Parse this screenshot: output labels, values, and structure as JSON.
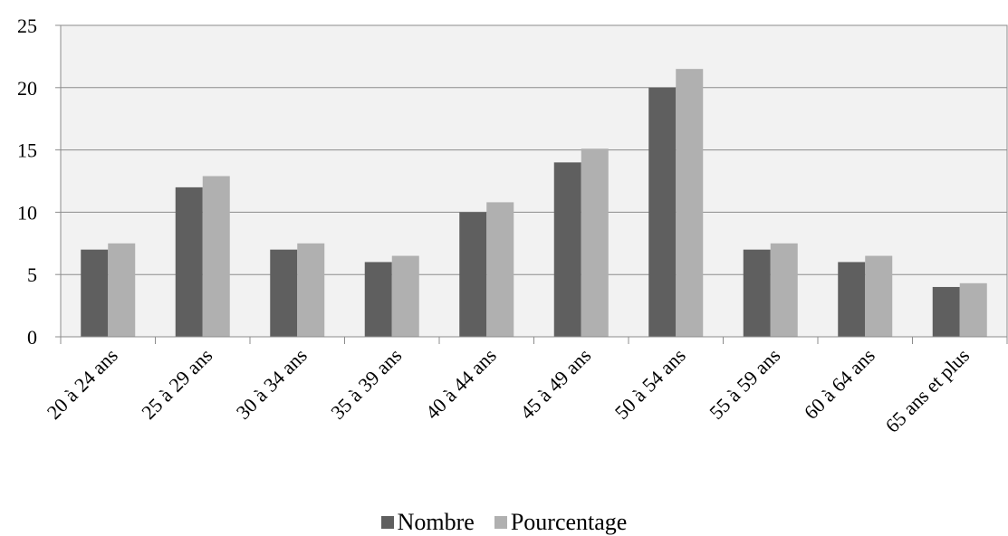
{
  "chart_data": {
    "type": "bar",
    "categories": [
      "20 à 24 ans",
      "25 à 29 ans",
      "30 à 34 ans",
      "35 à 39 ans",
      "40 à 44 ans",
      "45 à 49 ans",
      "50 à 54 ans",
      "55 à 59 ans",
      "60 à 64 ans",
      "65 ans et plus"
    ],
    "series": [
      {
        "name": "Nombre",
        "color": "#5f5f5f",
        "values": [
          7,
          12,
          7,
          6,
          10,
          14,
          20,
          7,
          6,
          4
        ]
      },
      {
        "name": "Pourcentage",
        "color": "#b0b0b0",
        "values": [
          7.5,
          12.9,
          7.5,
          6.5,
          10.8,
          15.1,
          21.5,
          7.5,
          6.5,
          4.3
        ]
      }
    ],
    "ylim": [
      0,
      25
    ],
    "yticks": [
      "0",
      "5",
      "10",
      "15",
      "20",
      "25"
    ],
    "grid": true,
    "legend_position": "bottom",
    "plot_background": "#f2f2f2",
    "title": "",
    "xlabel": "",
    "ylabel": ""
  }
}
